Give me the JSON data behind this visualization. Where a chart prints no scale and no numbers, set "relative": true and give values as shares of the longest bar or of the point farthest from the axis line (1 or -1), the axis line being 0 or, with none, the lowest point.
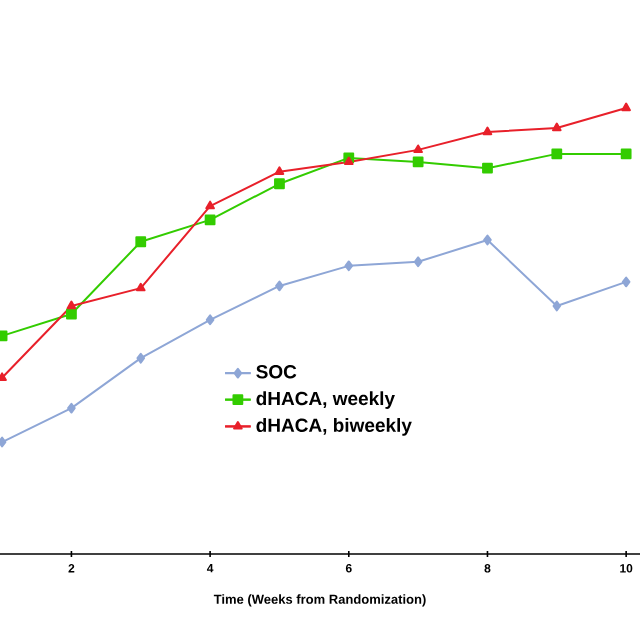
{
  "chart_data": {
    "type": "line",
    "relative": true,
    "xlabel": "Time (Weeks from Randomization)",
    "x": [
      1,
      2,
      3,
      4,
      5,
      6,
      7,
      8,
      9,
      10
    ],
    "xlim": [
      0.97,
      10.2
    ],
    "xticks": [
      2,
      4,
      6,
      8,
      10
    ],
    "tick_labels": "x",
    "grid": false,
    "legend": "bottom",
    "series": [
      {
        "name": "SOC",
        "color": "#8ea6d6",
        "marker": "diamond",
        "values": [
          0.251,
          0.327,
          0.439,
          0.525,
          0.601,
          0.646,
          0.655,
          0.704,
          0.556,
          0.61
        ]
      },
      {
        "name": "dHACA, weekly",
        "color": "#33cc00",
        "marker": "square",
        "values": [
          0.489,
          0.538,
          0.7,
          0.749,
          0.83,
          0.888,
          0.879,
          0.865,
          0.897,
          0.897
        ]
      },
      {
        "name": "dHACA, biweekly",
        "color": "#e8202a",
        "marker": "triangle",
        "values": [
          0.395,
          0.556,
          0.596,
          0.78,
          0.857,
          0.879,
          0.906,
          0.946,
          0.955,
          1.0
        ]
      }
    ]
  }
}
